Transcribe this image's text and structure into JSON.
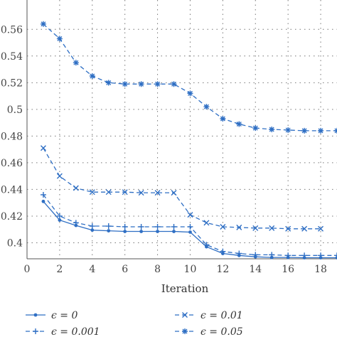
{
  "chart_data": {
    "type": "line",
    "xlabel": "Iteration",
    "ylabel": "",
    "xlim": [
      0,
      19
    ],
    "ylim": [
      0.388,
      0.582
    ],
    "x_ticks": [
      0,
      2,
      4,
      6,
      8,
      10,
      12,
      14,
      16,
      18
    ],
    "x_tick_labels": [
      "0",
      "2",
      "4",
      "6",
      "8",
      "10",
      "12",
      "14",
      "16",
      "18"
    ],
    "y_ticks": [
      0.4,
      0.42,
      0.44,
      0.46,
      0.48,
      0.5,
      0.52,
      0.54,
      0.56
    ],
    "y_tick_labels": [
      "0.4",
      "0.42",
      "0.44",
      "0.46",
      "0.48",
      "0.5",
      "0.52",
      "0.54",
      "0.56"
    ],
    "grid": true,
    "legend_position": "bottom",
    "color": "#2f6fc4",
    "series": [
      {
        "name": "ϵ = 0",
        "marker": "dot",
        "linestyle": "solid",
        "x": [
          1,
          2,
          3,
          4,
          5,
          6,
          7,
          8,
          9,
          10,
          11,
          12,
          13,
          14,
          15,
          16,
          17,
          18,
          19
        ],
        "y": [
          0.431,
          0.417,
          0.413,
          0.4095,
          0.409,
          0.4085,
          0.4085,
          0.4085,
          0.4085,
          0.408,
          0.397,
          0.392,
          0.3905,
          0.3895,
          0.389,
          0.389,
          0.3888,
          0.3888,
          0.3888
        ]
      },
      {
        "name": "ϵ = 0.001",
        "marker": "plus",
        "linestyle": "dashed",
        "x": [
          1,
          2,
          3,
          4,
          5,
          6,
          7,
          8,
          9,
          10,
          11,
          12,
          13,
          14,
          15,
          16,
          17,
          18,
          19
        ],
        "y": [
          0.436,
          0.42,
          0.415,
          0.4125,
          0.4125,
          0.412,
          0.412,
          0.412,
          0.412,
          0.412,
          0.3985,
          0.3935,
          0.392,
          0.391,
          0.391,
          0.3905,
          0.3905,
          0.3905,
          0.3905
        ]
      },
      {
        "name": "ϵ = 0.01",
        "marker": "x",
        "linestyle": "dashed",
        "x": [
          1,
          2,
          3,
          4,
          5,
          6,
          7,
          8,
          9,
          10,
          11,
          12,
          13,
          14,
          15,
          16,
          17,
          18
        ],
        "y": [
          0.471,
          0.45,
          0.441,
          0.438,
          0.438,
          0.438,
          0.4375,
          0.4375,
          0.4375,
          0.421,
          0.415,
          0.412,
          0.4115,
          0.411,
          0.411,
          0.4105,
          0.4105,
          0.4105
        ]
      },
      {
        "name": "ϵ = 0.05",
        "marker": "star",
        "linestyle": "dashed",
        "x": [
          1,
          2,
          3,
          4,
          5,
          6,
          7,
          8,
          9,
          10,
          11,
          12,
          13,
          14,
          15,
          16,
          17,
          18,
          19
        ],
        "y": [
          0.564,
          0.553,
          0.535,
          0.525,
          0.52,
          0.519,
          0.519,
          0.519,
          0.519,
          0.512,
          0.502,
          0.493,
          0.489,
          0.486,
          0.485,
          0.4845,
          0.484,
          0.484,
          0.484
        ]
      }
    ]
  }
}
